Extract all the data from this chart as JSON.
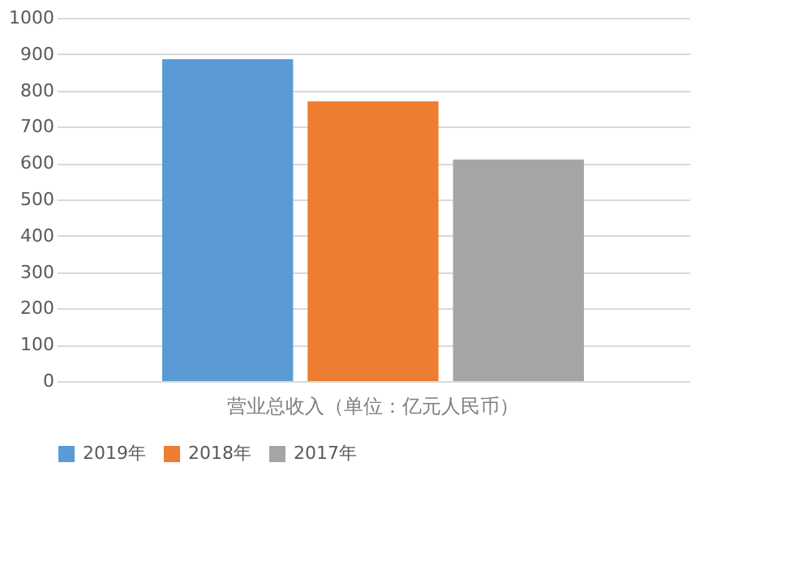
{
  "chart_data": {
    "type": "bar",
    "categories": [
      "营业总收入（单位：亿元人民币）"
    ],
    "series": [
      {
        "name": "2019年",
        "color": "#5b9bd5",
        "values": [
          886
        ]
      },
      {
        "name": "2018年",
        "color": "#ed7d31",
        "values": [
          770
        ]
      },
      {
        "name": "2017年",
        "color": "#a5a5a5",
        "values": [
          610
        ]
      }
    ],
    "ylim": [
      0,
      1000
    ],
    "yticks": [
      0,
      100,
      200,
      300,
      400,
      500,
      600,
      700,
      800,
      900,
      1000
    ],
    "grid": "y",
    "legend": "bottom"
  }
}
